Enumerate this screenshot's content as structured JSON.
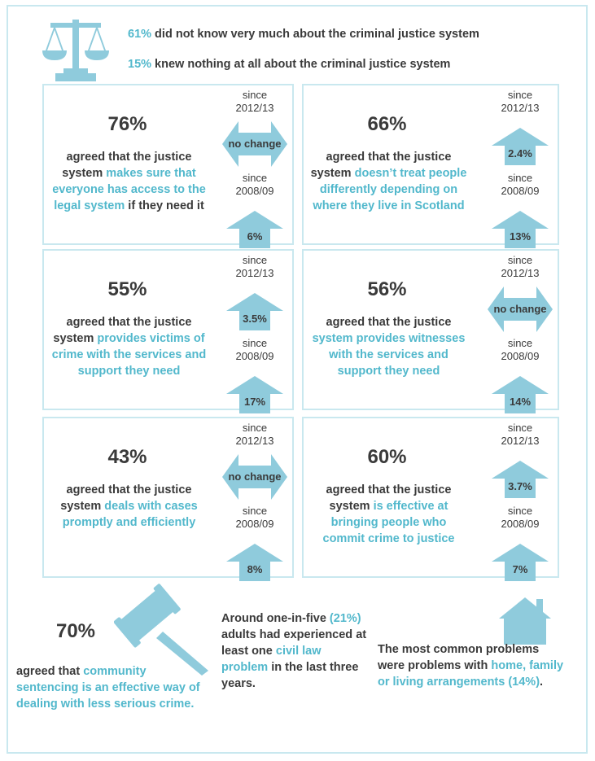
{
  "colors": {
    "accent": "#52b8cc",
    "arrow": "#8fcbdc",
    "border": "#c9e8ef",
    "text": "#3a3a3a"
  },
  "header": {
    "icon": "scales-of-justice-icon",
    "line1": {
      "pct": "61%",
      "text": " did not know very much about the criminal justice system"
    },
    "line2": {
      "pct": "15%",
      "text": " knew nothing at all about the criminal justice system"
    }
  },
  "panels": [
    {
      "big": "76%",
      "desc_plain": "agreed that the justice system ",
      "desc_hl": "makes sure that everyone has access to the legal system",
      "desc_after": " if they need it",
      "since1": "since 2012/13",
      "change1": "no change",
      "change1_type": "both",
      "since2": "since 2008/09",
      "change2": "6%",
      "change2_type": "up"
    },
    {
      "big": "66%",
      "desc_plain": "agreed that the justice system ",
      "desc_hl": "doesn’t treat people differently depending on where they live in Scotland",
      "desc_after": "",
      "since1": "since 2012/13",
      "change1": "2.4%",
      "change1_type": "up",
      "since2": "since 2008/09",
      "change2": "13%",
      "change2_type": "up"
    },
    {
      "big": "55%",
      "desc_plain": "agreed that the justice system ",
      "desc_hl": "provides victims of crime with the services and support they need",
      "desc_after": "",
      "since1": "since 2012/13",
      "change1": "3.5%",
      "change1_type": "up",
      "since2": "since 2008/09",
      "change2": "17%",
      "change2_type": "up"
    },
    {
      "big": "56%",
      "desc_plain": "agreed that the justice ",
      "desc_hl": "system provides witnesses with the services and support they need",
      "desc_after": "",
      "since1": "since 2012/13",
      "change1": "no change",
      "change1_type": "both",
      "since2": "since 2008/09",
      "change2": "14%",
      "change2_type": "up"
    },
    {
      "big": "43%",
      "desc_plain": "agreed that the justice system ",
      "desc_hl": "deals with cases promptly and efficiently",
      "desc_after": "",
      "since1": "since 2012/13",
      "change1": "no change",
      "change1_type": "both",
      "since2": "since 2008/09",
      "change2": "8%",
      "change2_type": "up"
    },
    {
      "big": "60%",
      "desc_plain": "agreed that the justice system ",
      "desc_hl": "is effective at bringing people who commit crime to justice",
      "desc_after": "",
      "since1": "since 2012/13",
      "change1": "3.7%",
      "change1_type": "up",
      "since2": "since 2008/09",
      "change2": "7%",
      "change2_type": "up"
    }
  ],
  "bottom": {
    "gavel": {
      "icon": "gavel-icon",
      "big": "70%",
      "plain": "agreed that ",
      "hl": "community sentencing is an effective way of dealing with less serious crime."
    },
    "civil": {
      "p1": "Around one-in-five ",
      "hl1": "(21%)",
      "p2": " adults had experienced at least one ",
      "hl2": "civil law problem",
      "p3": " in the last three years."
    },
    "house": {
      "icon": "house-icon",
      "plain": "The most common problems were problems with ",
      "hl": "home, family or living arrangements (14%)",
      "after": "."
    }
  }
}
